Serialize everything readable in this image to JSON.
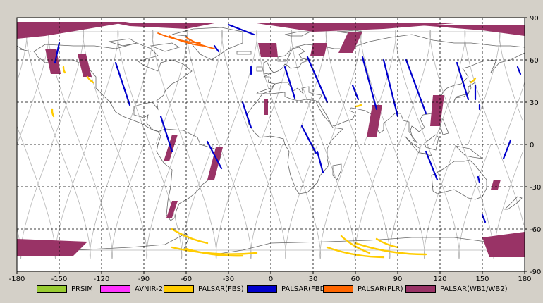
{
  "map": {
    "x_ticks": [
      "-180",
      "-150",
      "-120",
      "-90",
      "-60",
      "-30",
      "0",
      "30",
      "60",
      "90",
      "120",
      "150",
      "180"
    ],
    "y_ticks": [
      "90",
      "60",
      "30",
      "0",
      "-30",
      "-60",
      "-90"
    ],
    "colors": {
      "background": "#ffffff",
      "coastline": "#666666",
      "orbit": "#b4b4b4",
      "grid": "#000000"
    }
  },
  "legend": {
    "items": [
      {
        "label": "PRSIM",
        "color": "#99cc33"
      },
      {
        "label": "AVNIR-2",
        "color": "#ff33ff"
      },
      {
        "label": "PALSAR(FBS)",
        "color": "#ffcc00"
      },
      {
        "label": "PALSAR(FBD)",
        "color": "#0000cc"
      },
      {
        "label": "PALSAR(PLR)",
        "color": "#ff6600"
      },
      {
        "label": "PALSAR(WB1/WB2)",
        "color": "#993366"
      }
    ]
  },
  "coverage": {
    "fbd_tracks": [
      [
        -150,
        72,
        -153,
        58
      ],
      [
        -110,
        58,
        -100,
        28
      ],
      [
        -78,
        20,
        -70,
        -5
      ],
      [
        -45,
        2,
        -35,
        -17
      ],
      [
        -30,
        85,
        -12,
        78
      ],
      [
        -40,
        70,
        -37,
        66
      ],
      [
        -14,
        55,
        -14,
        50
      ],
      [
        10,
        55,
        17,
        33
      ],
      [
        -20,
        30,
        -14,
        12
      ],
      [
        22,
        13,
        32,
        -6
      ],
      [
        26,
        62,
        40,
        30
      ],
      [
        33,
        -5,
        37,
        -20
      ],
      [
        58,
        42,
        62,
        32
      ],
      [
        65,
        62,
        75,
        25
      ],
      [
        80,
        60,
        90,
        20
      ],
      [
        96,
        60,
        110,
        22
      ],
      [
        110,
        -5,
        118,
        -25
      ],
      [
        132,
        58,
        140,
        32
      ],
      [
        145,
        42,
        145,
        32
      ],
      [
        148,
        28,
        148,
        25
      ],
      [
        147,
        -23,
        148,
        -27
      ],
      [
        150,
        -50,
        152,
        -55
      ],
      [
        170,
        3,
        165,
        -10
      ],
      [
        175,
        55,
        177,
        50
      ]
    ],
    "wb_strips": [
      [
        [
          -160,
          68
        ],
        [
          -152,
          68
        ],
        [
          -149,
          50
        ],
        [
          -156,
          50
        ]
      ],
      [
        [
          -137,
          64
        ],
        [
          -131,
          64
        ],
        [
          -127,
          48
        ],
        [
          -133,
          48
        ]
      ],
      [
        [
          -9,
          72
        ],
        [
          4,
          72
        ],
        [
          5,
          62
        ],
        [
          -7,
          62
        ]
      ],
      [
        [
          72,
          28
        ],
        [
          79,
          28
        ],
        [
          75,
          5
        ],
        [
          68,
          5
        ]
      ],
      [
        [
          115,
          35
        ],
        [
          123,
          35
        ],
        [
          120,
          13
        ],
        [
          113,
          13
        ]
      ],
      [
        [
          -5,
          32
        ],
        [
          -2,
          32
        ],
        [
          -2,
          21
        ],
        [
          -5,
          21
        ]
      ],
      [
        [
          -70,
          7
        ],
        [
          -66,
          7
        ],
        [
          -72,
          -12
        ],
        [
          -76,
          -12
        ]
      ],
      [
        [
          -39,
          -2
        ],
        [
          -34,
          -2
        ],
        [
          -40,
          -25
        ],
        [
          -45,
          -25
        ]
      ],
      [
        [
          -70,
          -40
        ],
        [
          -66,
          -40
        ],
        [
          -70,
          -52
        ],
        [
          -74,
          -52
        ]
      ],
      [
        [
          158,
          -25
        ],
        [
          163,
          -25
        ],
        [
          161,
          -32
        ],
        [
          156,
          -32
        ]
      ],
      [
        [
          30,
          72
        ],
        [
          40,
          72
        ],
        [
          38,
          63
        ],
        [
          28,
          63
        ]
      ],
      [
        [
          55,
          80
        ],
        [
          65,
          80
        ],
        [
          58,
          65
        ],
        [
          48,
          65
        ]
      ],
      [
        [
          -180,
          87
        ],
        [
          -100,
          87
        ],
        [
          -160,
          77
        ],
        [
          -180,
          75
        ]
      ],
      [
        [
          -110,
          86
        ],
        [
          -40,
          86
        ],
        [
          -60,
          82
        ],
        [
          -100,
          84
        ]
      ],
      [
        [
          -10,
          86
        ],
        [
          130,
          86
        ],
        [
          80,
          82
        ],
        [
          30,
          80
        ]
      ],
      [
        [
          100,
          85
        ],
        [
          180,
          85
        ],
        [
          180,
          77
        ],
        [
          150,
          81
        ]
      ],
      [
        [
          -180,
          -67
        ],
        [
          -130,
          -69
        ],
        [
          -140,
          -79
        ],
        [
          -180,
          -79
        ]
      ],
      [
        [
          150,
          -66
        ],
        [
          180,
          -62
        ],
        [
          180,
          -80
        ],
        [
          155,
          -80
        ]
      ]
    ],
    "fbs_arcs": [
      [
        -70,
        -60,
        -45,
        -70
      ],
      [
        -70,
        -73,
        -10,
        -77
      ],
      [
        -60,
        -74,
        -20,
        -79
      ],
      [
        50,
        -65,
        70,
        -77
      ],
      [
        60,
        -70,
        110,
        -78
      ],
      [
        40,
        -73,
        80,
        -80
      ],
      [
        75,
        -67,
        90,
        -73
      ],
      [
        -147,
        55,
        -146,
        51
      ],
      [
        -130,
        48,
        -126,
        44
      ],
      [
        -155,
        25,
        -154,
        20
      ],
      [
        60,
        27,
        64,
        28
      ],
      [
        142,
        44,
        145,
        47
      ]
    ],
    "plr_arcs": [
      [
        -80,
        79,
        -50,
        72
      ],
      [
        -72,
        77,
        -48,
        70
      ],
      [
        -60,
        76,
        -40,
        68
      ]
    ]
  }
}
